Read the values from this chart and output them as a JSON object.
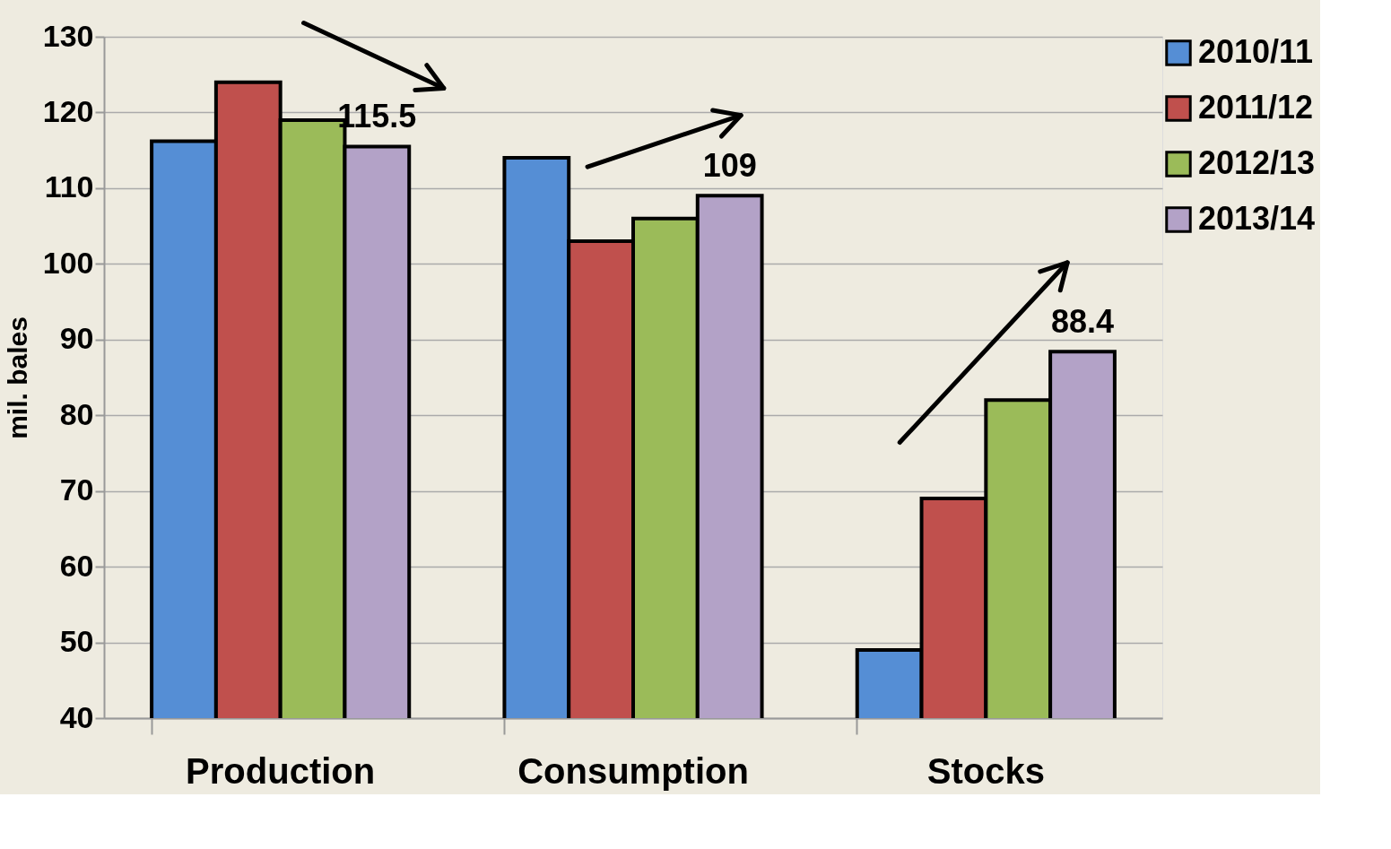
{
  "chart_data": {
    "type": "bar",
    "ylabel": "mil. bales",
    "categories": [
      "Production",
      "Consumption",
      "Stocks"
    ],
    "series": [
      {
        "name": "2010/11",
        "color": "#558ed5",
        "values": [
          116.2,
          114,
          49
        ]
      },
      {
        "name": "2011/12",
        "color": "#c0504d",
        "values": [
          124,
          103,
          69
        ]
      },
      {
        "name": "2012/13",
        "color": "#9bbb59",
        "values": [
          119,
          106,
          82
        ]
      },
      {
        "name": "2013/14",
        "color": "#b3a2c7",
        "values": [
          115.5,
          109,
          88.4
        ],
        "value_labels": [
          "115.5",
          "109",
          "88.4"
        ]
      }
    ],
    "ylim": [
      40,
      130
    ],
    "yticks": [
      40,
      50,
      60,
      70,
      80,
      90,
      100,
      110,
      120,
      130
    ],
    "grid": "y",
    "legend": "right"
  }
}
